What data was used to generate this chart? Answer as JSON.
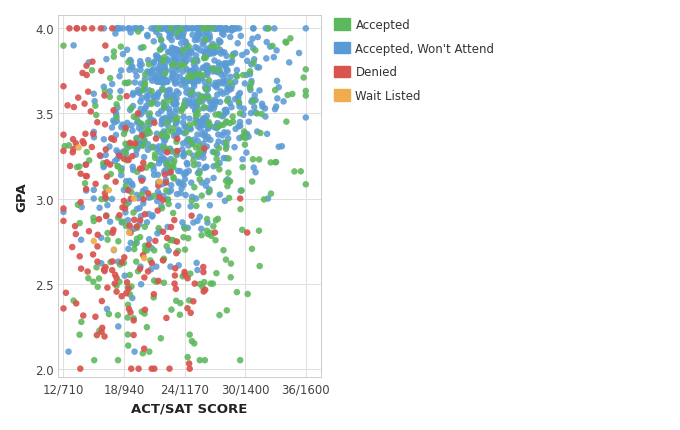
{
  "title": "",
  "xlabel": "ACT/SAT SCORE",
  "ylabel": "GPA",
  "xlim": [
    11.5,
    37.5
  ],
  "ylim": [
    1.95,
    4.08
  ],
  "xticks": [
    12,
    18,
    24,
    30,
    36
  ],
  "xticklabels": [
    "12/710",
    "18/940",
    "24/1170",
    "30/1400",
    "36/1600"
  ],
  "yticks": [
    2.0,
    2.5,
    3.0,
    3.5,
    4.0
  ],
  "categories": {
    "Accepted": {
      "color": "#5cb85c",
      "zorder": 3
    },
    "Accepted, Won't Attend": {
      "color": "#5b9bd5",
      "zorder": 2
    },
    "Denied": {
      "color": "#d9534f",
      "zorder": 4
    },
    "Wait Listed": {
      "color": "#f0ad4e",
      "zorder": 5
    }
  },
  "legend_labels": [
    "Accepted",
    "Accepted, Won't Attend",
    "Denied",
    "Wait Listed"
  ],
  "legend_colors": [
    "#5cb85c",
    "#5b9bd5",
    "#d9534f",
    "#f0ad4e"
  ],
  "marker_size": 22,
  "background_color": "#ffffff",
  "grid_color": "#e0e0e0",
  "seed": 42
}
